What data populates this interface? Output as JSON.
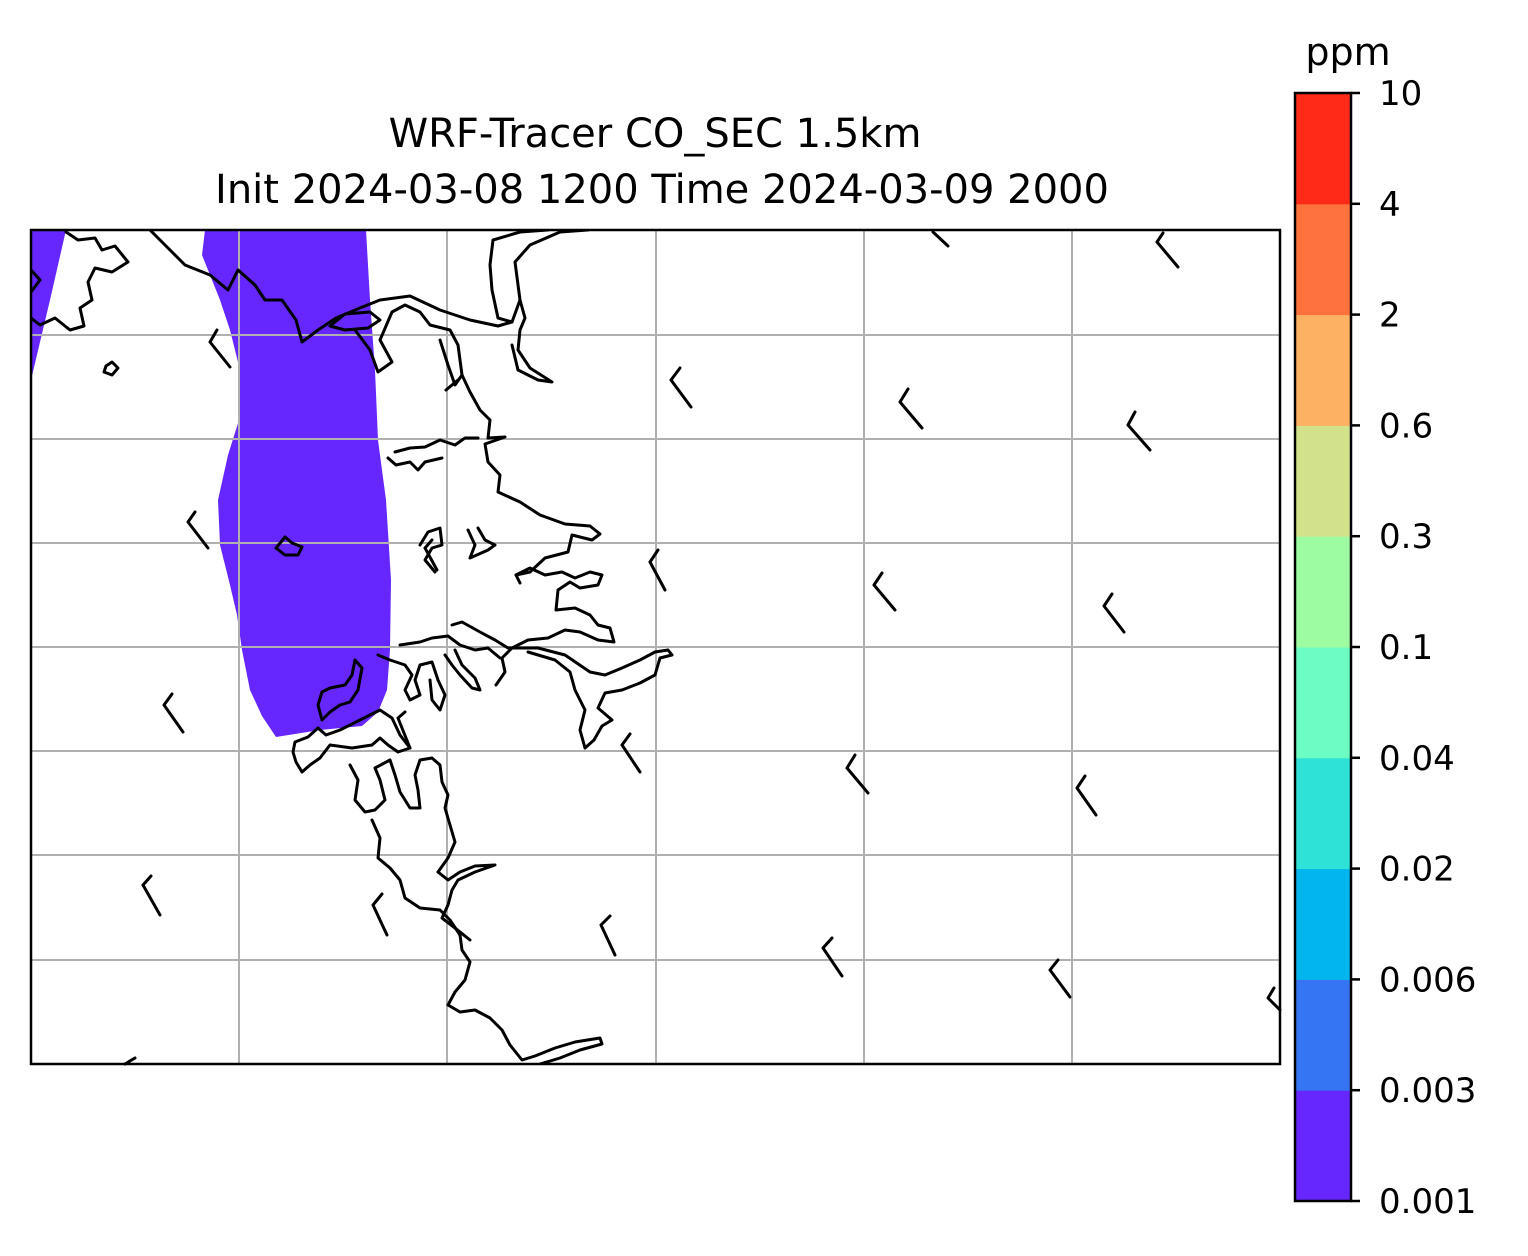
{
  "title": {
    "line1": "WRF-Tracer CO_SEC 1.5km",
    "line2": "Init 2024-03-08 1200 Time 2024-03-09 2000"
  },
  "colorbar": {
    "unit": "ppm",
    "levels": [
      "0.001",
      "0.003",
      "0.006",
      "0.02",
      "0.04",
      "0.1",
      "0.3",
      "0.6",
      "2",
      "4",
      "10"
    ],
    "colors": [
      "#6527fd",
      "#3574f2",
      "#03b5ed",
      "#2ee2d7",
      "#6bfdc1",
      "#9dfca1",
      "#d2e28a",
      "#fdb163",
      "#fe733d",
      "#ff2a17"
    ]
  },
  "map": {
    "plume_color": "#6527fd",
    "coastline_color": "#000000",
    "gridline_color": "#b0b0b0",
    "wind_barbs": "calm/light barbs"
  }
}
